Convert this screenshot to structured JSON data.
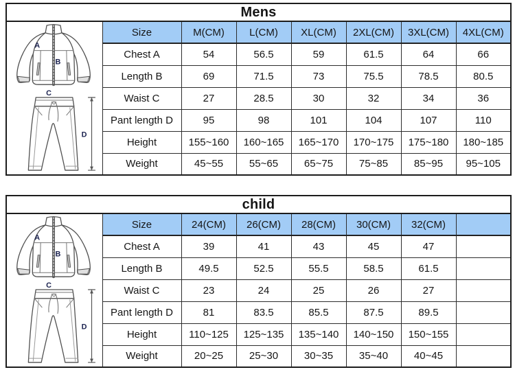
{
  "colors": {
    "header_bg": "#a2ccf6",
    "table_border": "#1c1c1c",
    "diagram_label": "#1c2350"
  },
  "diagram": {
    "labels": {
      "a": "A",
      "b": "B",
      "c": "C",
      "d": "D"
    }
  },
  "chart_data": [
    {
      "type": "table",
      "title": "Mens",
      "header": [
        "Size",
        "M(CM)",
        "L(CM)",
        "XL(CM)",
        "2XL(CM)",
        "3XL(CM)",
        "4XL(CM)"
      ],
      "rows": [
        {
          "label": "Chest A",
          "values": [
            "54",
            "56.5",
            "59",
            "61.5",
            "64",
            "66"
          ]
        },
        {
          "label": "Length B",
          "values": [
            "69",
            "71.5",
            "73",
            "75.5",
            "78.5",
            "80.5"
          ]
        },
        {
          "label": "Waist C",
          "values": [
            "27",
            "28.5",
            "30",
            "32",
            "34",
            "36"
          ]
        },
        {
          "label": "Pant length D",
          "values": [
            "95",
            "98",
            "101",
            "104",
            "107",
            "110"
          ]
        },
        {
          "label": "Height",
          "values": [
            "155~160",
            "160~165",
            "165~170",
            "170~175",
            "175~180",
            "180~185"
          ]
        },
        {
          "label": "Weight",
          "values": [
            "45~55",
            "55~65",
            "65~75",
            "75~85",
            "85~95",
            "95~105"
          ]
        }
      ]
    },
    {
      "type": "table",
      "title": "child",
      "header": [
        "Size",
        "24(CM)",
        "26(CM)",
        "28(CM)",
        "30(CM)",
        "32(CM)",
        ""
      ],
      "rows": [
        {
          "label": "Chest A",
          "values": [
            "39",
            "41",
            "43",
            "45",
            "47",
            ""
          ]
        },
        {
          "label": "Length B",
          "values": [
            "49.5",
            "52.5",
            "55.5",
            "58.5",
            "61.5",
            ""
          ]
        },
        {
          "label": "Waist C",
          "values": [
            "23",
            "24",
            "25",
            "26",
            "27",
            ""
          ]
        },
        {
          "label": "Pant length D",
          "values": [
            "81",
            "83.5",
            "85.5",
            "87.5",
            "89.5",
            ""
          ]
        },
        {
          "label": "Height",
          "values": [
            "110~125",
            "125~135",
            "135~140",
            "140~150",
            "150~155",
            ""
          ]
        },
        {
          "label": "Weight",
          "values": [
            "20~25",
            "25~30",
            "30~35",
            "35~40",
            "40~45",
            ""
          ]
        }
      ]
    }
  ]
}
